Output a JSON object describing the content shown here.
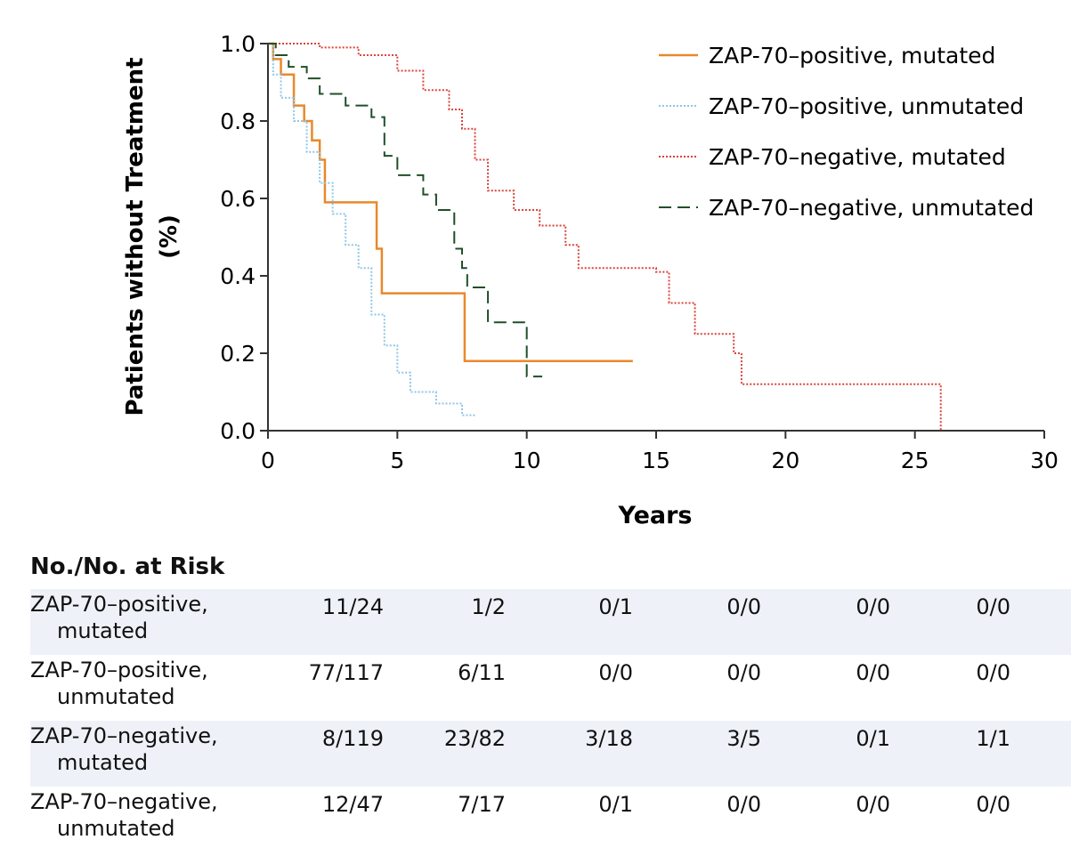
{
  "chart_data": {
    "type": "line",
    "xlabel": "Years",
    "ylabel": "Patients without Treatment (%)",
    "ylabel_lines": [
      "Patients without Treatment",
      "(%)"
    ],
    "xlim": [
      0,
      30
    ],
    "ylim": [
      0,
      1.0
    ],
    "xticks": [
      0,
      5,
      10,
      15,
      20,
      25,
      30
    ],
    "yticks": [
      "0.0",
      "0.2",
      "0.4",
      "0.6",
      "0.8",
      "1.0"
    ],
    "grid": false,
    "legend_position": "top-right",
    "series": [
      {
        "name": "ZAP-70–positive, mutated",
        "color": "#e8892c",
        "style": "solid",
        "points": [
          [
            0,
            1.0
          ],
          [
            0.2,
            0.96
          ],
          [
            0.5,
            0.92
          ],
          [
            1.0,
            0.84
          ],
          [
            1.4,
            0.8
          ],
          [
            1.7,
            0.75
          ],
          [
            2.0,
            0.7
          ],
          [
            2.2,
            0.59
          ],
          [
            4.2,
            0.47
          ],
          [
            4.4,
            0.355
          ],
          [
            7.6,
            0.18
          ],
          [
            14.1,
            0.18
          ]
        ]
      },
      {
        "name": "ZAP-70–positive, unmutated",
        "color": "#8fc6e8",
        "style": "dotted",
        "points": [
          [
            0,
            1.0
          ],
          [
            0.2,
            0.92
          ],
          [
            0.5,
            0.86
          ],
          [
            1.0,
            0.8
          ],
          [
            1.5,
            0.72
          ],
          [
            2.0,
            0.64
          ],
          [
            2.5,
            0.56
          ],
          [
            3.0,
            0.48
          ],
          [
            3.5,
            0.42
          ],
          [
            4.0,
            0.3
          ],
          [
            4.5,
            0.22
          ],
          [
            5.0,
            0.15
          ],
          [
            5.5,
            0.1
          ],
          [
            6.5,
            0.07
          ],
          [
            7.5,
            0.04
          ],
          [
            8.0,
            0.04
          ]
        ]
      },
      {
        "name": "ZAP-70–negative, mutated",
        "color": "#d9433a",
        "style": "dotted",
        "points": [
          [
            0,
            1.0
          ],
          [
            2.0,
            0.99
          ],
          [
            3.5,
            0.97
          ],
          [
            5.0,
            0.93
          ],
          [
            6.0,
            0.88
          ],
          [
            7.0,
            0.83
          ],
          [
            7.5,
            0.78
          ],
          [
            8.0,
            0.7
          ],
          [
            8.5,
            0.62
          ],
          [
            9.5,
            0.57
          ],
          [
            10.5,
            0.53
          ],
          [
            11.5,
            0.48
          ],
          [
            12.0,
            0.42
          ],
          [
            15.0,
            0.41
          ],
          [
            15.5,
            0.33
          ],
          [
            16.5,
            0.25
          ],
          [
            18.0,
            0.2
          ],
          [
            18.3,
            0.12
          ],
          [
            26.0,
            0.12
          ],
          [
            26.0,
            0.0
          ]
        ]
      },
      {
        "name": "ZAP-70–negative, unmutated",
        "color": "#1f4f28",
        "style": "dashed",
        "points": [
          [
            0,
            1.0
          ],
          [
            0.3,
            0.97
          ],
          [
            0.8,
            0.94
          ],
          [
            1.5,
            0.91
          ],
          [
            2.0,
            0.87
          ],
          [
            3.0,
            0.84
          ],
          [
            4.0,
            0.81
          ],
          [
            4.5,
            0.71
          ],
          [
            5.0,
            0.66
          ],
          [
            6.0,
            0.61
          ],
          [
            6.5,
            0.57
          ],
          [
            7.2,
            0.47
          ],
          [
            7.5,
            0.42
          ],
          [
            7.7,
            0.37
          ],
          [
            8.5,
            0.28
          ],
          [
            10.0,
            0.14
          ],
          [
            10.6,
            0.14
          ]
        ]
      }
    ]
  },
  "risk_table": {
    "title": "No./No. at Risk",
    "rows": [
      {
        "label_line1": "ZAP-70–positive,",
        "label_line2": "mutated",
        "values": [
          "11/24",
          "1/2",
          "0/1",
          "0/0",
          "0/0",
          "0/0"
        ]
      },
      {
        "label_line1": "ZAP-70–positive,",
        "label_line2": "unmutated",
        "values": [
          "77/117",
          "6/11",
          "0/0",
          "0/0",
          "0/0",
          "0/0"
        ]
      },
      {
        "label_line1": "ZAP-70–negative,",
        "label_line2": "mutated",
        "values": [
          "8/119",
          "23/82",
          "3/18",
          "3/5",
          "0/1",
          "1/1"
        ]
      },
      {
        "label_line1": "ZAP-70–negative,",
        "label_line2": "unmutated",
        "values": [
          "12/47",
          "7/17",
          "0/1",
          "0/0",
          "0/0",
          "0/0"
        ]
      }
    ]
  }
}
